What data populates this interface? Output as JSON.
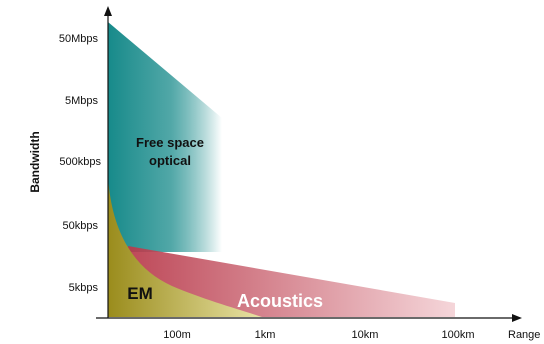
{
  "diagram": {
    "y_axis": {
      "title": "Bandwidth",
      "ticks": [
        "50Mbps",
        "5Mbps",
        "500kbps",
        "50kbps",
        "5kbps"
      ]
    },
    "x_axis": {
      "title": "Range",
      "ticks": [
        "100m",
        "1km",
        "10km",
        "100km"
      ]
    },
    "regions": {
      "optical": {
        "label_line1": "Free space",
        "label_line2": "optical",
        "color": "#178a8a",
        "fade_color": "#ffffff"
      },
      "acoustics": {
        "label": "Acoustics",
        "color": "#b8394a",
        "fade_color": "#f4d2d6",
        "label_color": "#ffffff"
      },
      "em": {
        "label": "EM",
        "color": "#9a8c1c",
        "fade_color": "#e9e3a6",
        "label_color": "#111111"
      }
    },
    "axis_color": "#111111"
  }
}
